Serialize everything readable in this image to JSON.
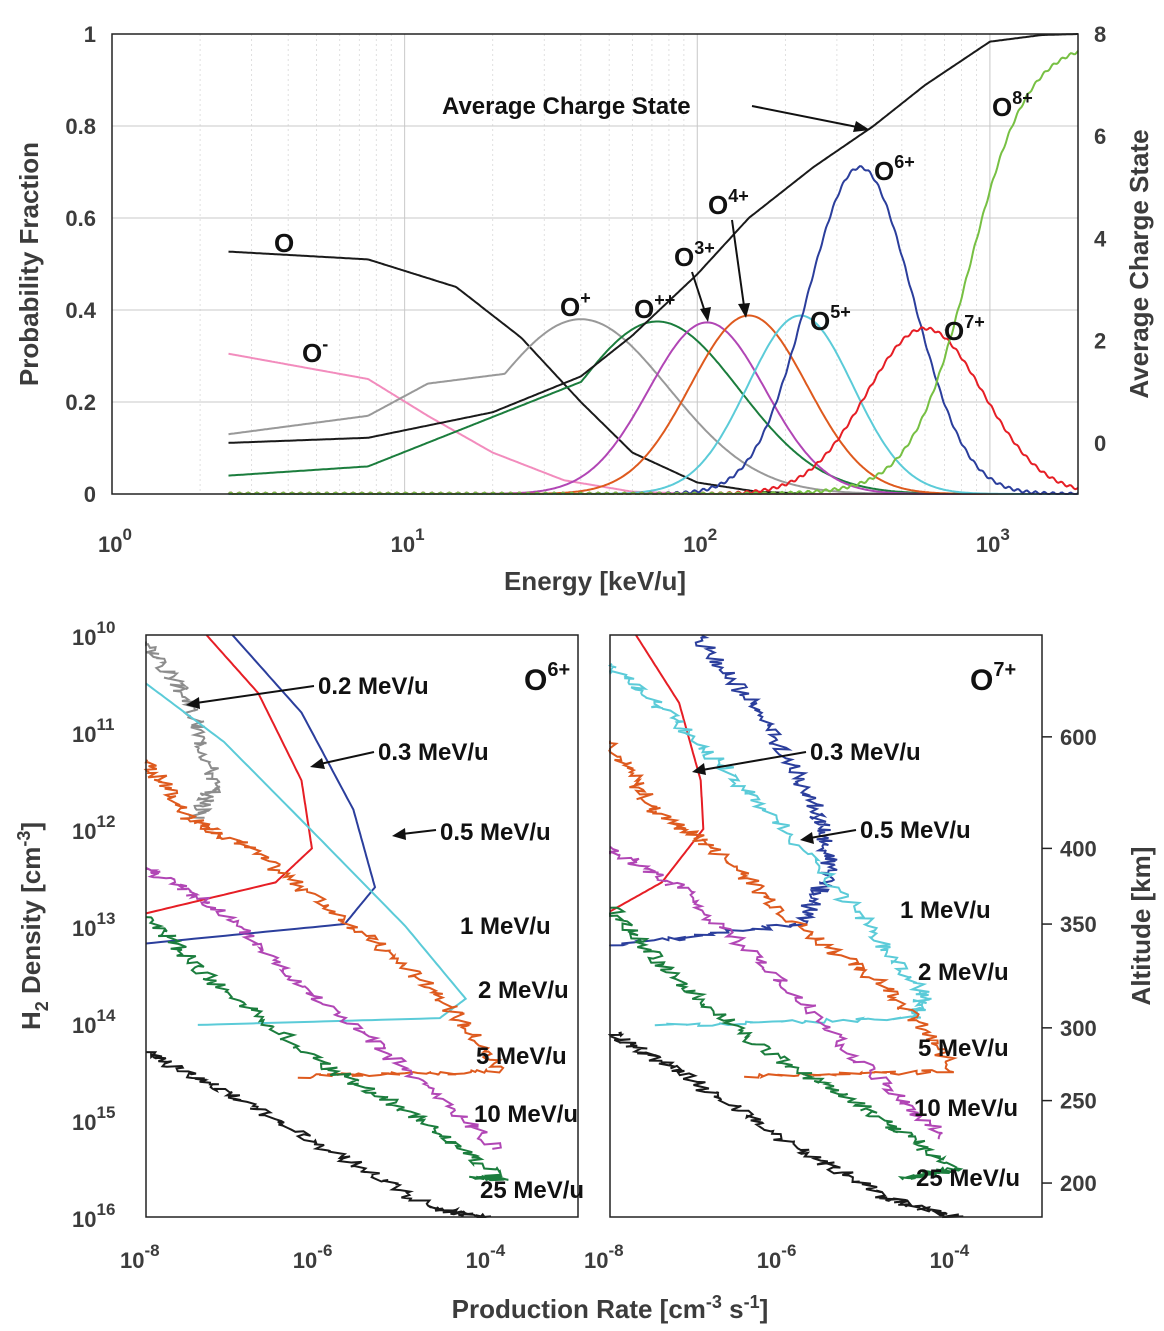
{
  "chart_data": [
    {
      "type": "line",
      "id": "top",
      "xlabel": "Energy [keV/u]",
      "ylabel": "Probability Fraction",
      "ylabel_right": "Average Charge State",
      "xscale": "log",
      "xlim": [
        1,
        2000
      ],
      "ylim": [
        0,
        1
      ],
      "ylim_right": [
        -1,
        8
      ],
      "x_ticks": [
        {
          "base": "10",
          "exp": "0"
        },
        {
          "base": "10",
          "exp": "1"
        },
        {
          "base": "10",
          "exp": "2"
        },
        {
          "base": "10",
          "exp": "3"
        }
      ],
      "y_ticks": [
        "0",
        "0.2",
        "0.4",
        "0.6",
        "0.8",
        "1"
      ],
      "y_right_ticks": [
        "0",
        "2",
        "4",
        "6",
        "8"
      ],
      "series": [
        {
          "name": "O",
          "color": "#1a1a1a",
          "peak_x": 2.5,
          "points": [
            [
              2.5,
              0.527
            ],
            [
              7.5,
              0.51
            ],
            [
              15,
              0.45
            ],
            [
              25,
              0.34
            ],
            [
              40,
              0.2
            ],
            [
              60,
              0.09
            ],
            [
              100,
              0.025
            ],
            [
              160,
              0.005
            ],
            [
              250,
              0
            ]
          ]
        },
        {
          "name": "O-",
          "color": "#f28cbd",
          "points": [
            [
              2.5,
              0.305
            ],
            [
              7.5,
              0.25
            ],
            [
              12,
              0.17
            ],
            [
              20,
              0.09
            ],
            [
              35,
              0.03
            ],
            [
              60,
              0.005
            ],
            [
              100,
              0
            ]
          ]
        },
        {
          "name": "O+",
          "color": "#999999",
          "peak_x": 40,
          "peak_y": 0.38,
          "sigma": 0.3,
          "points": [
            [
              2.5,
              0.13
            ],
            [
              7.5,
              0.17
            ],
            [
              12,
              0.24
            ]
          ]
        },
        {
          "name": "O++",
          "color": "#1b7d3d",
          "peak_x": 73,
          "peak_y": 0.375,
          "sigma": 0.28,
          "points": [
            [
              2.5,
              0.04
            ],
            [
              7.5,
              0.06
            ]
          ]
        },
        {
          "name": "O3+",
          "color": "#b146b5",
          "peak_x": 108,
          "peak_y": 0.373,
          "sigma": 0.2
        },
        {
          "name": "O4+",
          "color": "#de5a1e",
          "peak_x": 150,
          "peak_y": 0.388,
          "sigma": 0.2
        },
        {
          "name": "O5+",
          "color": "#5bcbd8",
          "peak_x": 225,
          "peak_y": 0.388,
          "sigma": 0.18
        },
        {
          "name": "O6+",
          "color": "#2b3e9c",
          "peak_x": 360,
          "peak_y": 0.71,
          "sigma": 0.18
        },
        {
          "name": "O7+",
          "color": "#e61e25",
          "peak_x": 600,
          "peak_y": 0.36,
          "sigma": 0.2
        },
        {
          "name": "O8+",
          "color": "#77c043",
          "type": "sigmoid",
          "mid_x": 850,
          "peak_y": 0.985,
          "width": 0.1
        },
        {
          "name": "Average Charge State",
          "color": "#1a1a1a",
          "axis": "right",
          "points": [
            [
              2.5,
              0
            ],
            [
              7.5,
              0.1
            ],
            [
              20,
              0.6
            ],
            [
              40,
              1.3
            ],
            [
              60,
              2.1
            ],
            [
              100,
              3.3
            ],
            [
              150,
              4.4
            ],
            [
              250,
              5.4
            ],
            [
              400,
              6.2
            ],
            [
              600,
              7
            ],
            [
              1000,
              7.85
            ],
            [
              1500,
              7.98
            ],
            [
              2000,
              8
            ]
          ]
        }
      ],
      "labels": {
        "O": "O",
        "Om": "O",
        "Om_sup": "-",
        "Op": "O",
        "Op_sup": "+",
        "Opp": "O",
        "Opp_sup": "++",
        "O3": "O",
        "O3_sup": "3+",
        "O4": "O",
        "O4_sup": "4+",
        "O5": "O",
        "O5_sup": "5+",
        "O6": "O",
        "O6_sup": "6+",
        "O7": "O",
        "O7_sup": "7+",
        "O8": "O",
        "O8_sup": "8+",
        "avg": "Average Charge State"
      }
    },
    {
      "type": "line",
      "id": "bottom",
      "xlabel": "Production Rate [cm-3 s-1]",
      "xlabel_parts": {
        "pre": "Production Rate [cm",
        "sup1": "-3",
        "mid": " s",
        "sup2": "-1",
        "post": "]"
      },
      "ylabel_parts": {
        "pre": "H",
        "sub": "2",
        "mid": " Density [cm",
        "sup": "-3",
        "post": "]"
      },
      "ylabel_right": "Altitude [km]",
      "xscale": "log",
      "yscale": "log",
      "xlim": [
        1e-08,
        0.001
      ],
      "ylim": [
        10000000000.0,
        1e+16
      ],
      "x_ticks": [
        {
          "base": "10",
          "exp": "-8"
        },
        {
          "base": "10",
          "exp": "-6"
        },
        {
          "base": "10",
          "exp": "-4"
        }
      ],
      "y_ticks": [
        {
          "base": "10",
          "exp": "10"
        },
        {
          "base": "10",
          "exp": "11"
        },
        {
          "base": "10",
          "exp": "12"
        },
        {
          "base": "10",
          "exp": "13"
        },
        {
          "base": "10",
          "exp": "14"
        },
        {
          "base": "10",
          "exp": "15"
        },
        {
          "base": "10",
          "exp": "16"
        }
      ],
      "altitude_ticks": [
        "600",
        "400",
        "350",
        "300",
        "250",
        "200"
      ],
      "altitude_tick_logdensity": [
        11.05,
        12.2,
        12.98,
        14.05,
        14.8,
        15.65
      ],
      "panels": [
        {
          "title": "O",
          "title_sup": "6+",
          "series": [
            {
              "name": "0.2 MeV/u",
              "color": "#8c8c8c",
              "noisy": true,
              "points": [
                [
                  -8,
                  10.05
                ],
                [
                  -7.5,
                  10.7
                ],
                [
                  -7.2,
                  11.5
                ],
                [
                  -7.4,
                  11.9
                ]
              ]
            },
            {
              "name": "0.3 MeV/u",
              "color": "#e61e25",
              "points": [
                [
                  -7.3,
                  10
                ],
                [
                  -6.7,
                  10.6
                ],
                [
                  -6.2,
                  11.5
                ],
                [
                  -6.08,
                  12.2
                ],
                [
                  -6.5,
                  12.55
                ],
                [
                  -8,
                  12.87
                ]
              ]
            },
            {
              "name": "0.5 MeV/u",
              "color": "#2b3e9c",
              "points": [
                [
                  -7,
                  10
                ],
                [
                  -6.2,
                  10.8
                ],
                [
                  -5.6,
                  11.8
                ],
                [
                  -5.35,
                  12.6
                ],
                [
                  -5.7,
                  12.98
                ],
                [
                  -8,
                  13.18
                ]
              ]
            },
            {
              "name": "1 MeV/u",
              "color": "#5bcbd8",
              "points": [
                [
                  -8,
                  10.5
                ],
                [
                  -7.1,
                  11.1
                ],
                [
                  -6.1,
                  12.0
                ],
                [
                  -5.0,
                  13.0
                ],
                [
                  -4.3,
                  13.75
                ],
                [
                  -4.6,
                  13.95
                ],
                [
                  -7.4,
                  14.02
                ]
              ]
            },
            {
              "name": "2 MeV/u",
              "color": "#de5a1e",
              "noisy": true,
              "points": [
                [
                  -8,
                  11.3
                ],
                [
                  -7.5,
                  11.9
                ],
                [
                  -6.8,
                  12.2
                ],
                [
                  -5.6,
                  13.0
                ],
                [
                  -4.6,
                  13.7
                ],
                [
                  -3.9,
                  14.5
                ],
                [
                  -6.2,
                  14.55
                ]
              ]
            },
            {
              "name": "5 MeV/u",
              "color": "#b146b5",
              "noisy": true,
              "points": [
                [
                  -8,
                  12.4
                ],
                [
                  -7.2,
                  12.8
                ],
                [
                  -6.2,
                  13.6
                ],
                [
                  -5.1,
                  14.4
                ],
                [
                  -3.9,
                  15.3
                ]
              ]
            },
            {
              "name": "10 MeV/u",
              "color": "#1b7d3d",
              "noisy": true,
              "points": [
                [
                  -8,
                  12.9
                ],
                [
                  -7.2,
                  13.6
                ],
                [
                  -6,
                  14.4
                ],
                [
                  -4.8,
                  15.0
                ],
                [
                  -3.9,
                  15.6
                ],
                [
                  -4.2,
                  15.6
                ]
              ]
            },
            {
              "name": "25 MeV/u",
              "color": "#1a1a1a",
              "noisy": true,
              "points": [
                [
                  -8,
                  14.3
                ],
                [
                  -7.1,
                  14.7
                ],
                [
                  -5.9,
                  15.3
                ],
                [
                  -4.7,
                  15.9
                ],
                [
                  -4.1,
                  16
                ]
              ]
            }
          ],
          "annotations": [
            "0.2 MeV/u",
            "0.3 MeV/u",
            "0.5 MeV/u",
            "1 MeV/u",
            "2 MeV/u",
            "5 MeV/u",
            "10 MeV/u",
            "25 MeV/u"
          ]
        },
        {
          "title": "O",
          "title_sup": "7+",
          "series": [
            {
              "name": "0.3 MeV/u",
              "color": "#e61e25",
              "points": [
                [
                  -7.7,
                  10
                ],
                [
                  -7.2,
                  10.7
                ],
                [
                  -6.95,
                  11.5
                ],
                [
                  -6.92,
                  12.0
                ],
                [
                  -7.4,
                  12.55
                ],
                [
                  -8,
                  12.85
                ]
              ]
            },
            {
              "name": "0.5 MeV/u",
              "color": "#2b3e9c",
              "noisy": true,
              "points": [
                [
                  -7,
                  10
                ],
                [
                  -6.2,
                  10.9
                ],
                [
                  -5.6,
                  11.8
                ],
                [
                  -5.45,
                  12.4
                ],
                [
                  -5.8,
                  12.98
                ],
                [
                  -8,
                  13.2
                ]
              ]
            },
            {
              "name": "1 MeV/u",
              "color": "#5bcbd8",
              "noisy": true,
              "points": [
                [
                  -8,
                  10.3
                ],
                [
                  -7.2,
                  10.9
                ],
                [
                  -6.3,
                  11.7
                ],
                [
                  -5.1,
                  12.9
                ],
                [
                  -4.35,
                  13.7
                ],
                [
                  -4.5,
                  13.95
                ],
                [
                  -7.4,
                  14.03
                ]
              ]
            },
            {
              "name": "2 MeV/u",
              "color": "#de5a1e",
              "noisy": true,
              "points": [
                [
                  -8,
                  11.1
                ],
                [
                  -7.5,
                  11.8
                ],
                [
                  -6.8,
                  12.2
                ],
                [
                  -5.8,
                  13.0
                ],
                [
                  -4.7,
                  13.7
                ],
                [
                  -4.0,
                  14.5
                ],
                [
                  -6.4,
                  14.55
                ]
              ]
            },
            {
              "name": "5 MeV/u",
              "color": "#b146b5",
              "noisy": true,
              "points": [
                [
                  -8,
                  12.2
                ],
                [
                  -7.2,
                  12.6
                ],
                [
                  -6.1,
                  13.5
                ],
                [
                  -5.1,
                  14.4
                ],
                [
                  -4.1,
                  15.2
                ]
              ]
            },
            {
              "name": "10 MeV/u",
              "color": "#1b7d3d",
              "noisy": true,
              "points": [
                [
                  -8,
                  12.8
                ],
                [
                  -7.3,
                  13.5
                ],
                [
                  -6.2,
                  14.3
                ],
                [
                  -5.0,
                  14.9
                ],
                [
                  -4.0,
                  15.5
                ],
                [
                  -4.6,
                  15.6
                ]
              ]
            },
            {
              "name": "25 MeV/u",
              "color": "#1a1a1a",
              "noisy": true,
              "points": [
                [
                  -8,
                  14.1
                ],
                [
                  -7.2,
                  14.5
                ],
                [
                  -6.0,
                  15.2
                ],
                [
                  -4.8,
                  15.8
                ],
                [
                  -4.0,
                  16
                ]
              ]
            }
          ],
          "annotations": [
            "0.3 MeV/u",
            "0.5 MeV/u",
            "1 MeV/u",
            "2 MeV/u",
            "5 MeV/u",
            "10 MeV/u",
            "25 MeV/u"
          ]
        }
      ]
    }
  ]
}
